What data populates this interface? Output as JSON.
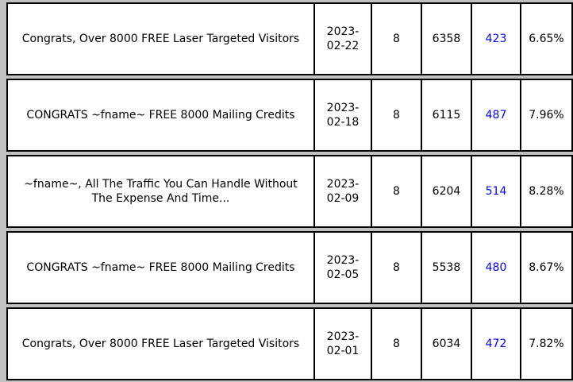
{
  "rows": [
    {
      "subject": "Congrats, Over 8000 FREE Laser Targeted Visitors",
      "date": "2023-02-22",
      "col3": "8",
      "col4": "6358",
      "clicks": "423",
      "rate": "6.65%"
    },
    {
      "subject": "CONGRATS ~fname~ FREE 8000 Mailing Credits",
      "date": "2023-02-18",
      "col3": "8",
      "col4": "6115",
      "clicks": "487",
      "rate": "7.96%"
    },
    {
      "subject": "~fname~, All The Traffic You Can Handle Without The Expense And Time...",
      "date": "2023-02-09",
      "col3": "8",
      "col4": "6204",
      "clicks": "514",
      "rate": "8.28%"
    },
    {
      "subject": "CONGRATS ~fname~ FREE 8000 Mailing Credits",
      "date": "2023-02-05",
      "col3": "8",
      "col4": "5538",
      "clicks": "480",
      "rate": "8.67%"
    },
    {
      "subject": "Congrats, Over 8000 FREE Laser Targeted Visitors",
      "date": "2023-02-01",
      "col3": "8",
      "col4": "6034",
      "clicks": "472",
      "rate": "7.82%"
    }
  ],
  "colors": {
    "link": "#0000ee",
    "separator": "#c0c0c0"
  }
}
